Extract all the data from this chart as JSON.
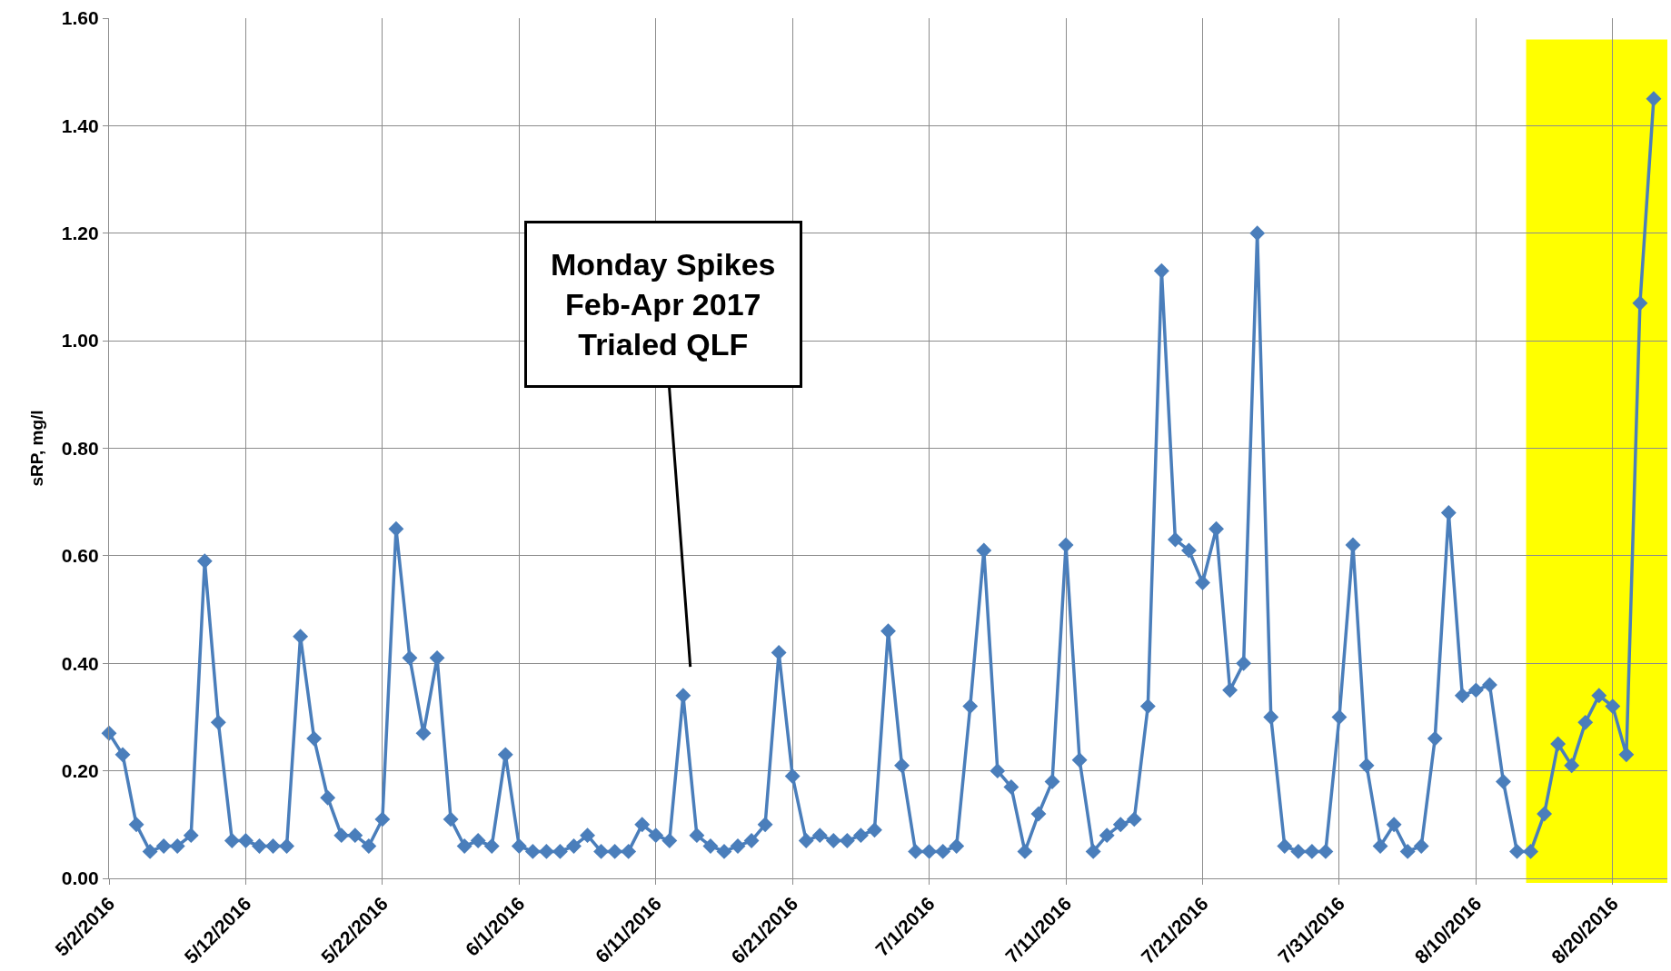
{
  "chart_data": {
    "type": "line",
    "ylabel": "sRP, mg/l",
    "x": [
      "2016-05-02",
      "2016-05-03",
      "2016-05-04",
      "2016-05-05",
      "2016-05-06",
      "2016-05-07",
      "2016-05-08",
      "2016-05-09",
      "2016-05-10",
      "2016-05-11",
      "2016-05-12",
      "2016-05-13",
      "2016-05-14",
      "2016-05-15",
      "2016-05-16",
      "2016-05-17",
      "2016-05-18",
      "2016-05-19",
      "2016-05-20",
      "2016-05-21",
      "2016-05-22",
      "2016-05-23",
      "2016-05-24",
      "2016-05-25",
      "2016-05-26",
      "2016-05-27",
      "2016-05-28",
      "2016-05-29",
      "2016-05-30",
      "2016-05-31",
      "2016-06-01",
      "2016-06-02",
      "2016-06-03",
      "2016-06-04",
      "2016-06-05",
      "2016-06-06",
      "2016-06-07",
      "2016-06-08",
      "2016-06-09",
      "2016-06-10",
      "2016-06-11",
      "2016-06-12",
      "2016-06-13",
      "2016-06-14",
      "2016-06-15",
      "2016-06-16",
      "2016-06-17",
      "2016-06-18",
      "2016-06-19",
      "2016-06-20",
      "2016-06-21",
      "2016-06-22",
      "2016-06-23",
      "2016-06-24",
      "2016-06-25",
      "2016-06-26",
      "2016-06-27",
      "2016-06-28",
      "2016-06-29",
      "2016-06-30",
      "2016-07-01",
      "2016-07-02",
      "2016-07-03",
      "2016-07-04",
      "2016-07-05",
      "2016-07-06",
      "2016-07-07",
      "2016-07-08",
      "2016-07-09",
      "2016-07-10",
      "2016-07-11",
      "2016-07-12",
      "2016-07-13",
      "2016-07-14",
      "2016-07-15",
      "2016-07-16",
      "2016-07-17",
      "2016-07-18",
      "2016-07-19",
      "2016-07-20",
      "2016-07-21",
      "2016-07-22",
      "2016-07-23",
      "2016-07-24",
      "2016-07-25",
      "2016-07-26",
      "2016-07-27",
      "2016-07-28",
      "2016-07-29",
      "2016-07-30",
      "2016-07-31",
      "2016-08-01",
      "2016-08-02",
      "2016-08-03",
      "2016-08-04",
      "2016-08-05",
      "2016-08-06",
      "2016-08-07",
      "2016-08-08",
      "2016-08-09",
      "2016-08-10",
      "2016-08-11",
      "2016-08-12",
      "2016-08-13",
      "2016-08-14",
      "2016-08-15",
      "2016-08-16",
      "2016-08-17",
      "2016-08-18",
      "2016-08-19",
      "2016-08-20",
      "2016-08-21",
      "2016-08-22",
      "2016-08-23"
    ],
    "series": [
      {
        "color": "#4a7ebb",
        "values": [
          0.27,
          0.23,
          0.1,
          0.05,
          0.06,
          0.06,
          0.08,
          0.59,
          0.29,
          0.07,
          0.07,
          0.06,
          0.06,
          0.06,
          0.45,
          0.26,
          0.15,
          0.08,
          0.08,
          0.06,
          0.11,
          0.65,
          0.41,
          0.27,
          0.41,
          0.11,
          0.06,
          0.07,
          0.06,
          0.23,
          0.06,
          0.05,
          0.05,
          0.05,
          0.06,
          0.08,
          0.05,
          0.05,
          0.05,
          0.1,
          0.08,
          0.07,
          0.34,
          0.08,
          0.06,
          0.05,
          0.06,
          0.07,
          0.1,
          0.42,
          0.19,
          0.07,
          0.08,
          0.07,
          0.07,
          0.08,
          0.09,
          0.46,
          0.21,
          0.05,
          0.05,
          0.05,
          0.06,
          0.32,
          0.61,
          0.2,
          0.17,
          0.05,
          0.12,
          0.18,
          0.62,
          0.22,
          0.05,
          0.08,
          0.1,
          0.11,
          0.32,
          1.13,
          0.63,
          0.61,
          0.55,
          0.65,
          0.35,
          0.4,
          1.2,
          0.3,
          0.06,
          0.05,
          0.05,
          0.05,
          0.3,
          0.62,
          0.21,
          0.06,
          0.1,
          0.05,
          0.06,
          0.26,
          0.68,
          0.34,
          0.35,
          0.36,
          0.18,
          0.05,
          0.05,
          0.12,
          0.25,
          0.21,
          0.29,
          0.34,
          0.32,
          0.23,
          1.07,
          1.45
        ]
      }
    ],
    "xlim": [
      "2016-05-02",
      "2016-08-24"
    ],
    "xticks": [
      {
        "value": "2016-05-02",
        "label": "5/2/2016"
      },
      {
        "value": "2016-05-12",
        "label": "5/12/2016"
      },
      {
        "value": "2016-05-22",
        "label": "5/22/2016"
      },
      {
        "value": "2016-06-01",
        "label": "6/1/2016"
      },
      {
        "value": "2016-06-11",
        "label": "6/11/2016"
      },
      {
        "value": "2016-06-21",
        "label": "6/21/2016"
      },
      {
        "value": "2016-07-01",
        "label": "7/1/2016"
      },
      {
        "value": "2016-07-11",
        "label": "7/11/2016"
      },
      {
        "value": "2016-07-21",
        "label": "7/21/2016"
      },
      {
        "value": "2016-07-31",
        "label": "7/31/2016"
      },
      {
        "value": "2016-08-10",
        "label": "8/10/2016"
      },
      {
        "value": "2016-08-20",
        "label": "8/20/2016"
      }
    ],
    "ylim": [
      0,
      1.6
    ],
    "yticks": [
      {
        "value": 0,
        "label": "0.00"
      },
      {
        "value": 0.2,
        "label": "0.20"
      },
      {
        "value": 0.4,
        "label": "0.40"
      },
      {
        "value": 0.6,
        "label": "0.60"
      },
      {
        "value": 0.8,
        "label": "0.80"
      },
      {
        "value": 1.0,
        "label": "1.00"
      },
      {
        "value": 1.2,
        "label": "1.20"
      },
      {
        "value": 1.4,
        "label": "1.40"
      },
      {
        "value": 1.6,
        "label": "1.60"
      }
    ],
    "grid": true,
    "marker": "diamond",
    "line_style": "solid",
    "annotations": [
      "Monday Spikes\nFeb-Apr 2017\nTrialed QLF"
    ],
    "bands": [
      {
        "axis": "x",
        "from": "2016-08-14",
        "to": "2016-08-24",
        "color": "#ffff00"
      }
    ]
  }
}
